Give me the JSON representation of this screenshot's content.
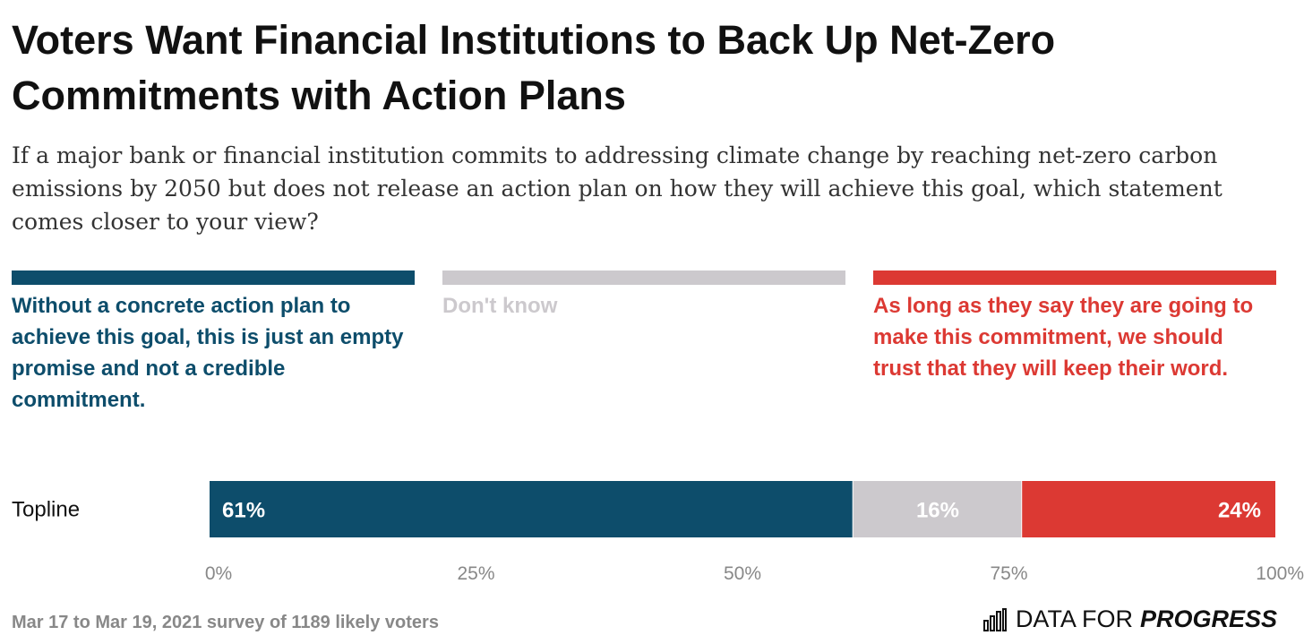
{
  "chart_data": {
    "type": "bar",
    "orientation": "horizontal-stacked",
    "title": "Voters Want Financial Institutions to Back Up Net-Zero Commitments with Action Plans",
    "subtitle": "If a major bank or financial institution commits to addressing climate change by reaching net-zero carbon emissions by 2050 but does not release an action plan on how they will achieve this goal, which statement comes closer to your view?",
    "categories": [
      "Topline"
    ],
    "series": [
      {
        "name": "Without a concrete action plan to achieve this goal, this is just an empty promise and not a credible commitment.",
        "values": [
          61
        ],
        "label": "61%",
        "color": "#0d4d6b",
        "label_color": "#ffffff"
      },
      {
        "name": "Don't know",
        "values": [
          16
        ],
        "label": "16%",
        "color": "#ccc9cd",
        "label_color": "#ffffff"
      },
      {
        "name": "As long as they say they are going to make this commitment, we should trust that they will keep their word.",
        "values": [
          24
        ],
        "label": "24%",
        "color": "#dc3933",
        "label_color": "#ffffff"
      }
    ],
    "xlim": [
      0,
      100
    ],
    "x_ticks": [
      "0%",
      "25%",
      "50%",
      "75%",
      "100%"
    ],
    "grid": false,
    "legend_position": "top"
  },
  "footer": {
    "note": "Mar 17 to Mar 19, 2021 survey of 1189 likely voters",
    "brand_light": "DATA FOR",
    "brand_strong": "PROGRESS"
  },
  "icons": {
    "brand": "bar-chart-icon"
  }
}
